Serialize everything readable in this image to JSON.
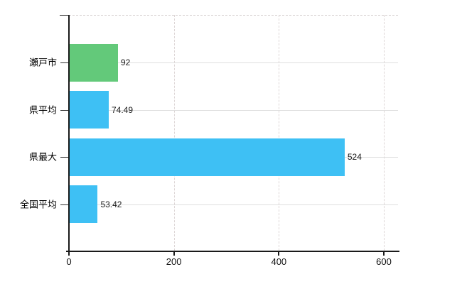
{
  "chart_data": {
    "type": "bar",
    "orientation": "horizontal",
    "title": "",
    "xlabel": "",
    "ylabel": "",
    "categories": [
      "瀬戸市",
      "県平均",
      "県最大",
      "全国平均"
    ],
    "values": [
      92,
      74.49,
      524,
      53.42
    ],
    "value_labels": [
      "92",
      "74.49",
      "524",
      "53.42"
    ],
    "bar_colors": [
      "#63c97a",
      "#3ec0f4",
      "#3ec0f4",
      "#3ec0f4"
    ],
    "x_ticks": [
      0,
      200,
      400,
      600
    ],
    "x_tick_labels": [
      "0",
      "200",
      "400",
      "600"
    ],
    "xlim": [
      0,
      627
    ],
    "grid": true,
    "legend": "none",
    "colors": {
      "green_bar": "#63c97a",
      "blue_bar": "#3ec0f4",
      "axis": "#1a1a1a",
      "gridline": "#dedede",
      "dashed_gridline": "#ddd6d6",
      "text": "#000000",
      "background": "#ffffff"
    }
  }
}
